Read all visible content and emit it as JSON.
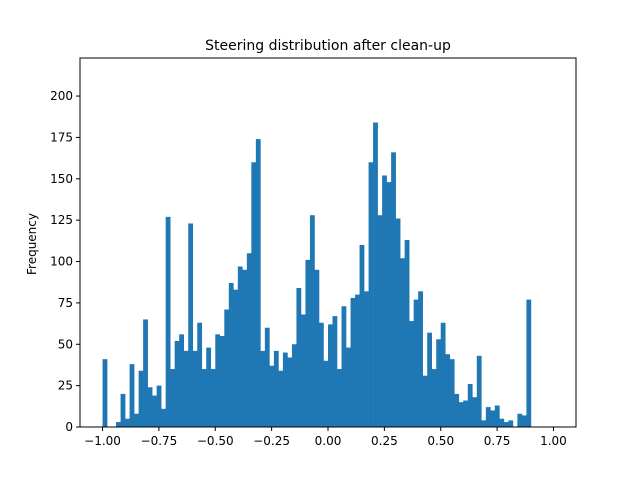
{
  "chart_data": {
    "type": "bar",
    "title": "Steering distribution after clean-up",
    "xlabel": "",
    "ylabel": "Frequency",
    "xlim": [
      -1.1,
      1.1
    ],
    "ylim": [
      0,
      223
    ],
    "x_ticks": [
      -1.0,
      -0.75,
      -0.5,
      -0.25,
      0.0,
      0.25,
      0.5,
      0.75,
      1.0
    ],
    "x_tick_labels": [
      "−1.00",
      "−0.75",
      "−0.50",
      "−0.25",
      "0.00",
      "0.25",
      "0.50",
      "0.75",
      "1.00"
    ],
    "y_ticks": [
      0,
      25,
      50,
      75,
      100,
      125,
      150,
      175,
      200
    ],
    "y_tick_labels": [
      "0",
      "25",
      "50",
      "75",
      "100",
      "125",
      "150",
      "175",
      "200"
    ],
    "grid": false,
    "legend": "none",
    "bar_color": "#1f77b4",
    "bin_start": -1.0,
    "bin_width": 0.02,
    "values": [
      41,
      0,
      0,
      3,
      20,
      5,
      38,
      8,
      34,
      65,
      24,
      19,
      25,
      11,
      127,
      35,
      52,
      56,
      46,
      123,
      46,
      63,
      35,
      48,
      35,
      56,
      55,
      71,
      87,
      83,
      97,
      95,
      105,
      160,
      174,
      46,
      60,
      37,
      46,
      34,
      45,
      42,
      50,
      84,
      68,
      101,
      128,
      95,
      63,
      40,
      62,
      67,
      35,
      73,
      48,
      78,
      80,
      110,
      82,
      160,
      184,
      128,
      152,
      148,
      166,
      126,
      102,
      113,
      64,
      77,
      82,
      31,
      57,
      35,
      53,
      63,
      44,
      41,
      20,
      15,
      16,
      26,
      18,
      43,
      4,
      12,
      10,
      13,
      5,
      3,
      4,
      0,
      8,
      7,
      77
    ]
  }
}
